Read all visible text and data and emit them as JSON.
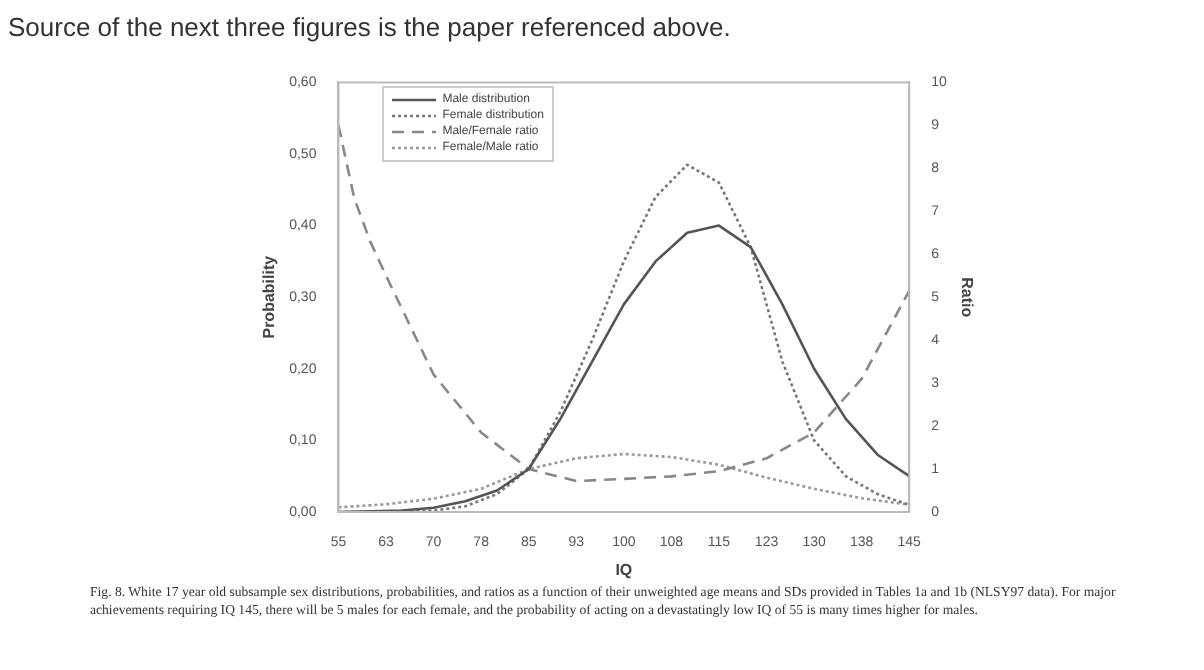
{
  "chart_data": {
    "type": "line",
    "title": "Source of the next three figures is the paper referenced above.",
    "xlabel": "IQ",
    "ylabel": "Probability",
    "y2label": "Ratio",
    "xlim": [
      55,
      145
    ],
    "xticks": [
      55,
      {
        "value": 62.5,
        "label": "63"
      },
      70,
      {
        "value": 77.5,
        "label": "78"
      },
      85,
      {
        "value": 92.5,
        "label": "93"
      },
      100,
      {
        "value": 107.5,
        "label": "108"
      },
      115,
      {
        "value": 122.5,
        "label": "123"
      },
      130,
      {
        "value": 137.5,
        "label": "138"
      },
      145
    ],
    "ylim": [
      0,
      0.6
    ],
    "yticks": [
      {
        "value": 0,
        "label": "0,00"
      },
      {
        "value": 0.1,
        "label": "0,10"
      },
      {
        "value": 0.2,
        "label": "0,20"
      },
      {
        "value": 0.3,
        "label": "0,30"
      },
      {
        "value": 0.4,
        "label": "0,40"
      },
      {
        "value": 0.5,
        "label": "0,50"
      },
      {
        "value": 0.6,
        "label": "0,60"
      }
    ],
    "y2lim": [
      0,
      10
    ],
    "y2ticks": [
      0,
      1,
      2,
      3,
      4,
      5,
      6,
      7,
      8,
      9,
      10
    ],
    "legend": "top left",
    "grid": false,
    "marker": "none",
    "annotations": [
      "Fig. 8. White 17 year old subsample sex distributions, probabilities, and ratios as a function of their unweighted age means and SDs provided in Tables 1a and 1b (NLSY97 data). For major achievements requiring IQ 145, there will be 5 males for each female, and the probability of acting on a devastatingly low IQ of 55 is many times higher for males."
    ],
    "series": [
      {
        "name": "Male distribution",
        "color": "#555555",
        "line_style": "solid",
        "x": [
          55,
          60,
          65,
          70,
          75,
          80,
          85,
          90,
          95,
          100,
          105,
          110,
          115,
          120,
          125,
          130,
          135,
          140,
          145
        ],
        "values": [
          0,
          0.001,
          0.002,
          0.006,
          0.015,
          0.03,
          0.06,
          0.13,
          0.21,
          0.29,
          0.35,
          0.39,
          0.4,
          0.37,
          0.29,
          0.2,
          0.13,
          0.08,
          0.05
        ]
      },
      {
        "name": "Female distribution",
        "color": "#777777",
        "line_style": "dotted",
        "x": [
          55,
          60,
          65,
          70,
          75,
          80,
          85,
          90,
          95,
          100,
          105,
          110,
          115,
          120,
          125,
          130,
          135,
          140,
          145
        ],
        "values": [
          0,
          0,
          0,
          0.002,
          0.008,
          0.025,
          0.06,
          0.14,
          0.24,
          0.35,
          0.44,
          0.485,
          0.46,
          0.37,
          0.21,
          0.1,
          0.05,
          0.025,
          0.01
        ]
      },
      {
        "name": "Male/Female ratio",
        "color": "#888888",
        "line_style": "dashed",
        "axis": "y2",
        "x": [
          55,
          57.5,
          60,
          62.5,
          70,
          77.5,
          85,
          92.5,
          100,
          107.5,
          115,
          122.5,
          130,
          137.5,
          145
        ],
        "values": [
          9.0,
          7.3,
          6.3,
          5.5,
          3.2,
          1.85,
          1.0,
          0.72,
          0.77,
          0.83,
          0.95,
          1.25,
          1.85,
          3.1,
          5.15
        ]
      },
      {
        "name": "Female/Male ratio",
        "color": "#999999",
        "line_style": "dotted",
        "axis": "y2",
        "x": [
          55,
          62.5,
          70,
          77.5,
          85,
          92.5,
          100,
          107.5,
          115,
          122.5,
          130,
          137.5,
          145
        ],
        "values": [
          0.11,
          0.18,
          0.31,
          0.54,
          1.0,
          1.25,
          1.35,
          1.28,
          1.1,
          0.8,
          0.54,
          0.32,
          0.17
        ]
      }
    ]
  }
}
